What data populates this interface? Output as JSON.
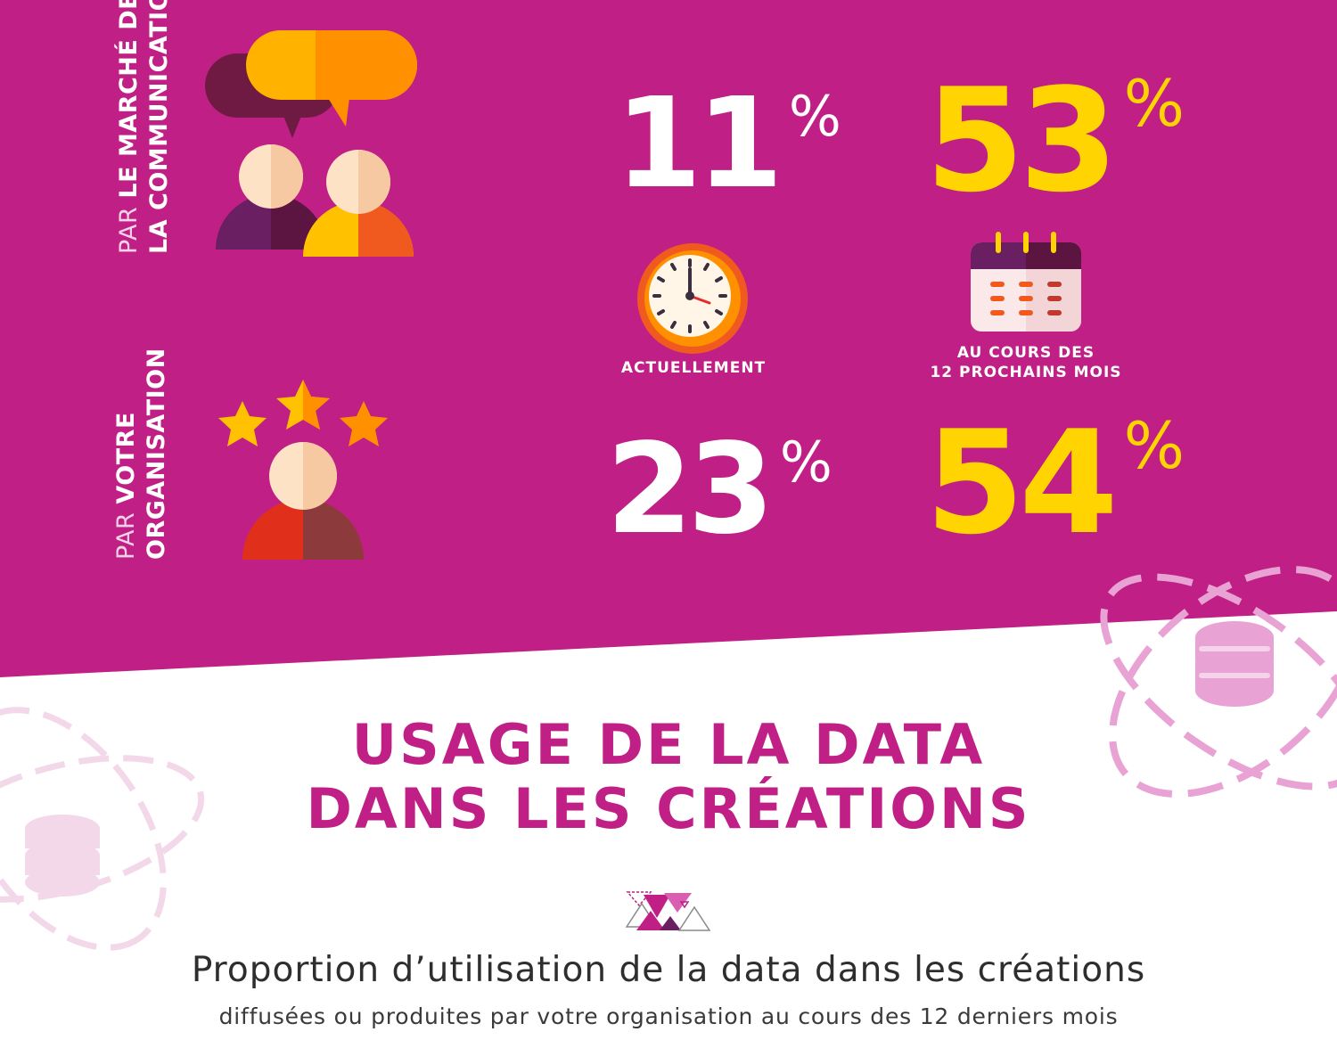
{
  "colors": {
    "magenta": "#c01f86",
    "yellow": "#ffd400",
    "white": "#ffffff",
    "light_pink": "#e8a2d3",
    "faint_pink": "#f4dcec",
    "dark_text": "#2e2e2e"
  },
  "rows": [
    {
      "label_prefix": "PAR",
      "label_line1": "LE MARCHÉ DE",
      "label_line2": "LA COMMUNICATIO",
      "icon": "chat-people-icon",
      "current": {
        "value": "11",
        "unit": "%"
      },
      "next12": {
        "value": "53",
        "unit": "%"
      }
    },
    {
      "label_prefix": "PAR",
      "label_line1": "VOTRE",
      "label_line2": "ORGANISATION",
      "icon": "person-stars-icon",
      "current": {
        "value": "23",
        "unit": "%"
      },
      "next12": {
        "value": "54",
        "unit": "%"
      }
    }
  ],
  "captions": {
    "current": "ACTUELLEMENT",
    "next_line1": "AU COURS DES",
    "next_line2": "12 PROCHAINS MOIS"
  },
  "section": {
    "title_line1": "USAGE DE LA DATA",
    "title_line2": "DANS LES CRÉATIONS",
    "subtitle": "Proportion d’utilisation de la data dans les créations",
    "subsubtitle": "diffusées ou produites par votre organisation au cours des 12 derniers mois"
  },
  "icons": {
    "clock": "clock-icon",
    "calendar": "calendar-icon",
    "database_orbit": "database-orbit-icon",
    "triangles": "triangles-decoration-icon"
  }
}
